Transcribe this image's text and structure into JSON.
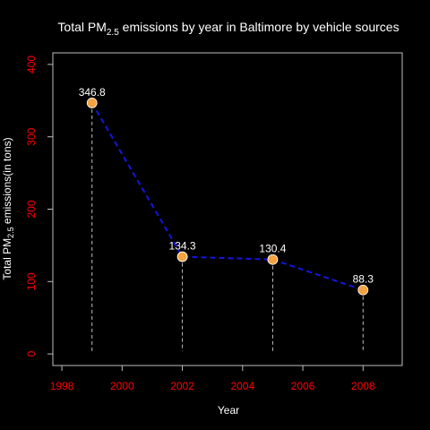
{
  "chart_data": {
    "type": "line",
    "title_pre": "Total PM",
    "title_sub": "2.5",
    "title_post": " emissions by year in Baltimore by vehicle sources",
    "ylabel_pre": "Total PM",
    "ylabel_sub": "2.5",
    "ylabel_post": " emissions(in tons)",
    "xlabel": "Year",
    "xlim": [
      1997.7,
      2009.3
    ],
    "ylim": [
      -16,
      416
    ],
    "xticks": [
      "1998",
      "2000",
      "2002",
      "2004",
      "2006",
      "2008"
    ],
    "yticks": [
      "0",
      "100",
      "200",
      "300",
      "400"
    ],
    "x": [
      1999,
      2002,
      2005,
      2008
    ],
    "y": [
      346.8,
      134.3,
      130.4,
      88.3
    ],
    "labels": [
      "346.8",
      "134.3",
      "130.4",
      "88.3"
    ],
    "colors": {
      "background": "#000000",
      "line": "#1515e0",
      "marker_fill": "#f4a340",
      "marker_stroke": "#ffffff",
      "tick_labels": "#ff0000",
      "axis": "#bebebe",
      "text": "#ffffff",
      "drop_lines": "#bebebe"
    }
  }
}
